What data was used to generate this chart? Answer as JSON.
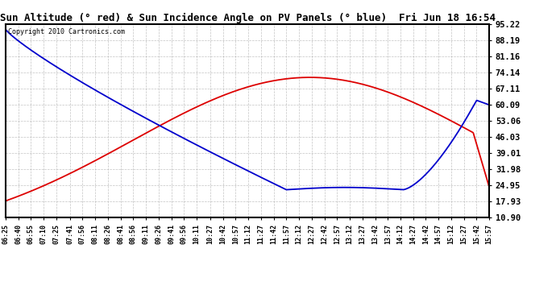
{
  "title": "Sun Altitude (° red) & Sun Incidence Angle on PV Panels (° blue)  Fri Jun 18 16:54",
  "copyright": "Copyright 2010 Cartronics.com",
  "ymin": 10.9,
  "ymax": 95.22,
  "yticks": [
    95.22,
    88.19,
    81.16,
    74.14,
    67.11,
    60.09,
    53.06,
    46.03,
    39.01,
    31.98,
    24.95,
    17.93,
    10.9
  ],
  "xtick_labels": [
    "06:25",
    "06:40",
    "06:55",
    "07:10",
    "07:25",
    "07:41",
    "07:56",
    "08:11",
    "08:26",
    "08:41",
    "08:56",
    "09:11",
    "09:26",
    "09:41",
    "09:56",
    "10:11",
    "10:27",
    "10:42",
    "10:57",
    "11:12",
    "11:27",
    "11:42",
    "11:57",
    "12:12",
    "12:27",
    "12:42",
    "12:57",
    "13:12",
    "13:27",
    "13:42",
    "13:57",
    "14:12",
    "14:27",
    "14:42",
    "14:57",
    "15:12",
    "15:27",
    "15:42",
    "15:57"
  ],
  "bg_color": "#ffffff",
  "grid_color": "#aaaaaa",
  "red_color": "#dd0000",
  "blue_color": "#0000cc"
}
